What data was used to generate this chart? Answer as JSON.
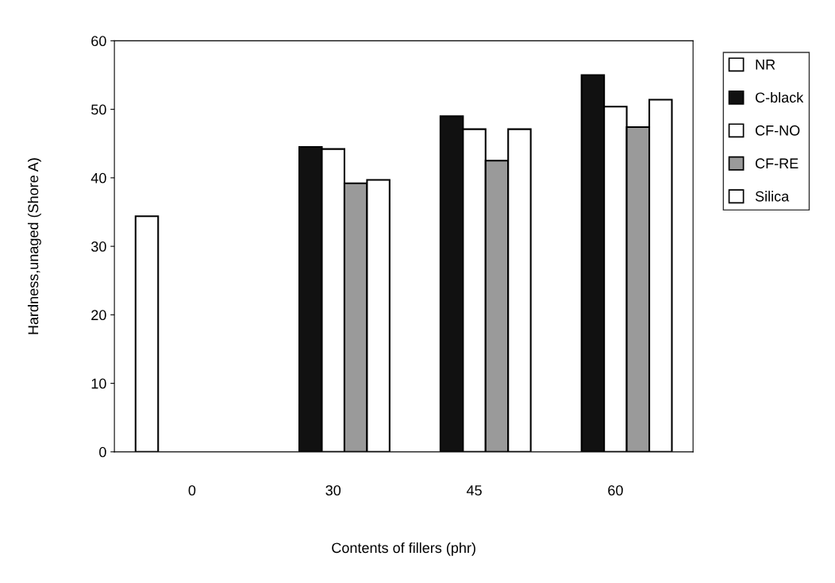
{
  "chart_data": {
    "type": "bar",
    "xlabel": "Contents of fillers (phr)",
    "ylabel": "Hardness,unaged (Shore A)",
    "categories": [
      "0",
      "30",
      "45",
      "60"
    ],
    "series": [
      {
        "name": "NR",
        "color": "#ffffff",
        "values": [
          34.4,
          null,
          null,
          null
        ]
      },
      {
        "name": "C-black",
        "color": "#111111",
        "values": [
          null,
          44.5,
          49.0,
          55.0
        ]
      },
      {
        "name": "CF-NO",
        "color": "#ffffff",
        "values": [
          null,
          44.2,
          47.1,
          50.4
        ]
      },
      {
        "name": "CF-RE",
        "color": "#9a9a9a",
        "values": [
          null,
          39.2,
          42.5,
          47.4
        ]
      },
      {
        "name": "Silica",
        "color": "#ffffff",
        "values": [
          null,
          39.7,
          47.1,
          51.4
        ]
      }
    ],
    "ylim": [
      0,
      60
    ],
    "yticks": [
      0,
      10,
      20,
      30,
      40,
      50,
      60
    ],
    "grid": false,
    "legend": "right"
  }
}
